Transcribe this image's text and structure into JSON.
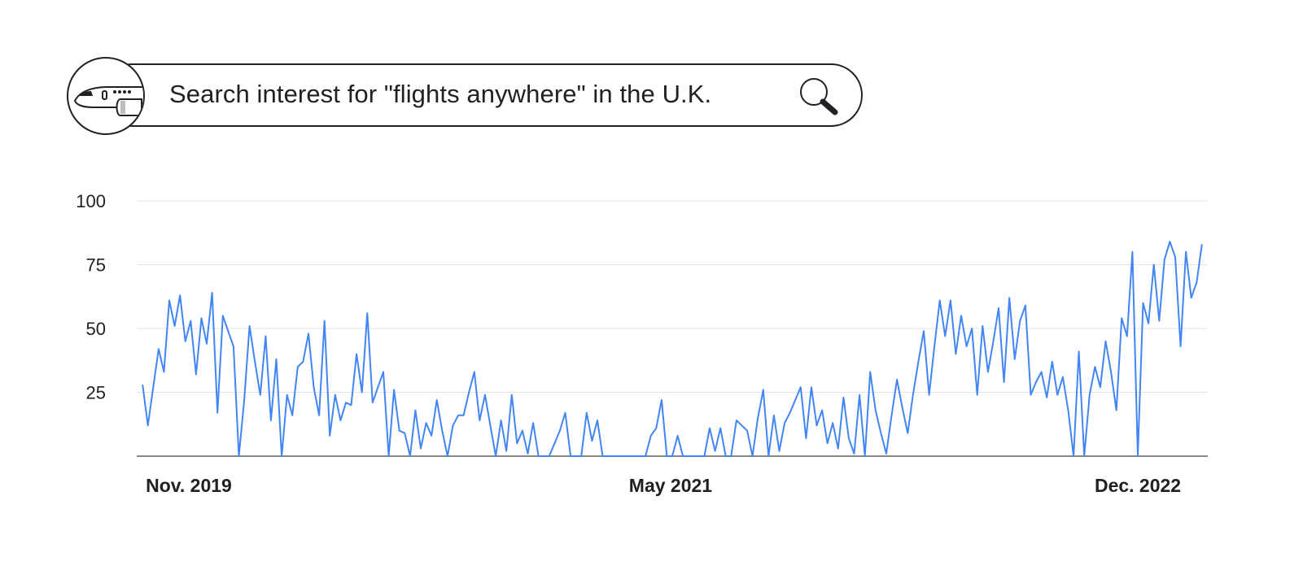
{
  "header": {
    "query_text": "Search interest for \"flights anywhere\" in the U.K.",
    "badge_icon": "airplane-icon",
    "search_icon": "magnifier-icon"
  },
  "colors": {
    "line": "#4285f4",
    "grid": "#e3e3e3",
    "baseline": "#5f6368",
    "text": "#202124"
  },
  "chart_data": {
    "type": "line",
    "title": "Search interest for \"flights anywhere\" in the U.K.",
    "ylim": [
      0,
      100
    ],
    "yticks": [
      {
        "value": 100,
        "label": "100"
      },
      {
        "value": 75,
        "label": "75"
      },
      {
        "value": 50,
        "label": "50"
      },
      {
        "value": 25,
        "label": "25"
      }
    ],
    "xticks": [
      {
        "value": 1,
        "label": "Nov. 2019"
      },
      {
        "value": 84,
        "label": "May 2021"
      },
      {
        "value": 164,
        "label": "Dec. 2022"
      }
    ],
    "xlim": [
      0,
      184
    ],
    "grid": true,
    "series": [
      {
        "values": [
          28,
          12,
          27,
          42,
          33,
          61,
          51,
          63,
          45,
          53,
          32,
          54,
          44,
          64,
          17,
          55,
          49,
          43,
          0,
          22,
          51,
          37,
          24,
          47,
          14,
          38,
          0,
          24,
          16,
          35,
          37,
          48,
          27,
          16,
          53,
          8,
          24,
          14,
          21,
          20,
          40,
          25,
          56,
          21,
          27,
          33,
          0,
          26,
          10,
          9,
          0,
          18,
          3,
          13,
          8,
          22,
          10,
          0,
          12,
          16,
          16,
          25,
          33,
          14,
          24,
          12,
          0,
          14,
          2,
          24,
          5,
          10,
          1,
          13,
          0,
          0,
          0,
          5,
          10,
          17,
          0,
          0,
          0,
          17,
          6,
          14,
          0,
          0,
          0,
          0,
          0,
          0,
          0,
          0,
          0,
          8,
          11,
          22,
          0,
          0,
          8,
          0,
          0,
          0,
          0,
          0,
          11,
          2,
          11,
          0,
          0,
          14,
          12,
          10,
          0,
          15,
          26,
          0,
          16,
          2,
          13,
          17,
          22,
          27,
          7,
          27,
          12,
          18,
          5,
          13,
          3,
          23,
          7,
          1,
          24,
          0,
          33,
          18,
          9,
          1,
          16,
          30,
          19,
          9,
          24,
          37,
          49,
          24,
          43,
          61,
          47,
          61,
          40,
          55,
          43,
          50,
          24,
          51,
          33,
          45,
          58,
          29,
          62,
          38,
          53,
          59,
          24,
          29,
          33,
          23,
          37,
          24,
          31,
          18,
          0,
          41,
          0,
          24,
          35,
          27,
          45,
          33,
          18,
          54,
          47,
          80,
          0,
          60,
          52,
          75,
          53,
          77,
          84,
          78,
          43,
          80,
          62,
          68,
          83
        ]
      }
    ]
  }
}
